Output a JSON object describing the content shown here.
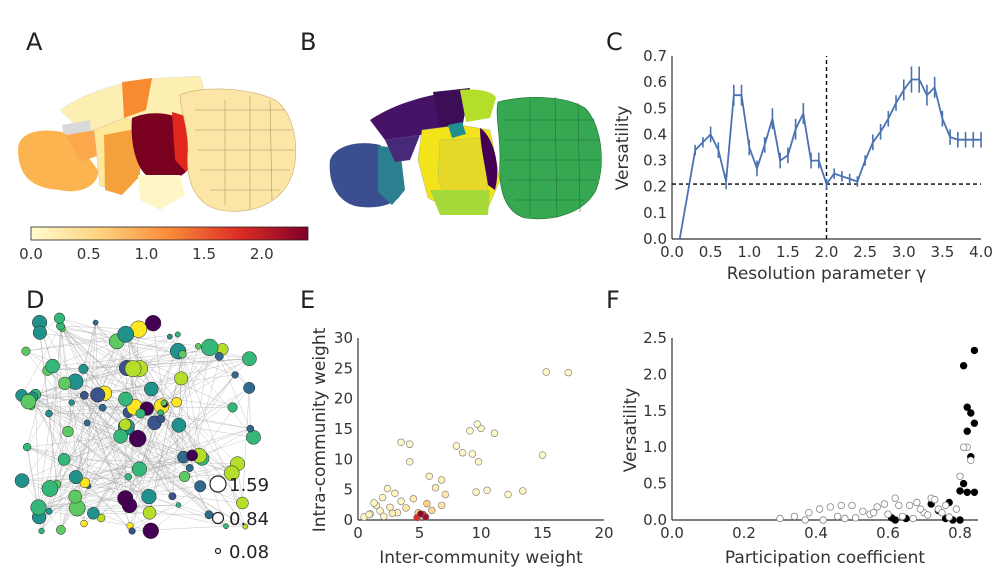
{
  "panel_labels": [
    "A",
    "B",
    "C",
    "D",
    "E",
    "F"
  ],
  "colors": {
    "line": "#4a72b0",
    "axis": "#333333",
    "dash": "#000000"
  },
  "colorbar": {
    "ticks": [
      "0.0",
      "0.5",
      "1.0",
      "1.5",
      "2.0"
    ],
    "min": 0,
    "max": 2.4
  },
  "size_legend": [
    "1.59",
    "0.84",
    "0.08"
  ],
  "chart_data": [
    {
      "id": "C",
      "type": "line",
      "xlabel": "Resolution parameter γ",
      "ylabel": "Versatility",
      "xlim": [
        0,
        4
      ],
      "ylim": [
        0,
        0.7
      ],
      "xticks": [
        "0.0",
        "0.5",
        "1.0",
        "1.5",
        "2.0",
        "2.5",
        "3.0",
        "3.5",
        "4.0"
      ],
      "yticks": [
        "0.0",
        "0.1",
        "0.2",
        "0.3",
        "0.4",
        "0.5",
        "0.6",
        "0.7"
      ],
      "hline": 0.21,
      "vline": 2.0,
      "x": [
        0.1,
        0.2,
        0.3,
        0.4,
        0.5,
        0.6,
        0.7,
        0.8,
        0.9,
        1.0,
        1.1,
        1.2,
        1.3,
        1.4,
        1.5,
        1.6,
        1.7,
        1.8,
        1.9,
        2.0,
        2.1,
        2.2,
        2.3,
        2.4,
        2.5,
        2.6,
        2.7,
        2.8,
        2.9,
        3.0,
        3.1,
        3.2,
        3.3,
        3.4,
        3.5,
        3.6,
        3.7,
        3.8,
        3.9,
        4.0
      ],
      "y": [
        0.0,
        0.17,
        0.34,
        0.37,
        0.4,
        0.34,
        0.22,
        0.55,
        0.55,
        0.35,
        0.27,
        0.36,
        0.46,
        0.3,
        0.32,
        0.42,
        0.48,
        0.3,
        0.3,
        0.21,
        0.25,
        0.24,
        0.23,
        0.22,
        0.3,
        0.37,
        0.41,
        0.46,
        0.52,
        0.57,
        0.61,
        0.61,
        0.55,
        0.58,
        0.46,
        0.39,
        0.38,
        0.38,
        0.38,
        0.38
      ],
      "err": [
        0,
        0,
        0.02,
        0.02,
        0.03,
        0.03,
        0.03,
        0.04,
        0.04,
        0.03,
        0.03,
        0.03,
        0.04,
        0.03,
        0.03,
        0.04,
        0.04,
        0.03,
        0.03,
        0.02,
        0.02,
        0.02,
        0.02,
        0.02,
        0.02,
        0.03,
        0.03,
        0.03,
        0.03,
        0.04,
        0.05,
        0.05,
        0.04,
        0.04,
        0.03,
        0.03,
        0.03,
        0.03,
        0.03,
        0.03
      ]
    },
    {
      "id": "E",
      "type": "scatter",
      "xlabel": "Inter-community weight",
      "ylabel": "Intra-community weight",
      "xlim": [
        0,
        20
      ],
      "ylim": [
        0,
        30
      ],
      "xticks": [
        "0",
        "5",
        "10",
        "15",
        "20"
      ],
      "yticks": [
        "0",
        "5",
        "10",
        "15",
        "20",
        "25",
        "30"
      ],
      "x": [
        15.3,
        17.1,
        9.1,
        10.0,
        9.7,
        11.1,
        3.5,
        4.2,
        8.0,
        8.5,
        9.3,
        9.8,
        15.0,
        13.4,
        9.6,
        12.2,
        10.5,
        4.2,
        5.8,
        6.8,
        1.0,
        1.5,
        2.0,
        2.4,
        3.0,
        3.5,
        1.8,
        2.6,
        3.2,
        0.5,
        0.9,
        1.3,
        2.1,
        2.8,
        3.9,
        4.5,
        4.9,
        5.3,
        5.5,
        4.8,
        5.1,
        6.0,
        6.8,
        7.1,
        6.3,
        5.6
      ],
      "y": [
        24.4,
        24.3,
        14.7,
        15.1,
        15.8,
        14.3,
        12.8,
        12.5,
        12.2,
        11.1,
        10.9,
        9.6,
        10.7,
        4.8,
        4.6,
        4.2,
        4.9,
        9.6,
        7.2,
        6.6,
        1.0,
        2.4,
        3.7,
        5.2,
        4.4,
        3.1,
        1.5,
        2.1,
        1.2,
        0.5,
        0.9,
        2.8,
        0.6,
        1.1,
        2.0,
        3.5,
        1.2,
        0.9,
        0.5,
        0.4,
        1.0,
        1.6,
        2.4,
        4.2,
        5.3,
        2.7
      ],
      "c": [
        0.05,
        0.05,
        0.05,
        0.05,
        0.05,
        0.05,
        0.05,
        0.05,
        0.05,
        0.05,
        0.05,
        0.05,
        0.05,
        0.05,
        0.1,
        0.05,
        0.05,
        0.05,
        0.1,
        0.2,
        0.05,
        0.1,
        0.1,
        0.1,
        0.1,
        0.1,
        0.05,
        0.1,
        0.1,
        0.05,
        0.1,
        0.1,
        0.1,
        0.2,
        0.3,
        0.2,
        0.6,
        1.6,
        2.2,
        1.8,
        2.3,
        0.5,
        0.3,
        0.25,
        0.2,
        0.6
      ]
    },
    {
      "id": "F",
      "type": "scatter",
      "xlabel": "Participation coefficient",
      "ylabel": "Versatility",
      "xlim": [
        0,
        0.85
      ],
      "ylim": [
        0,
        2.5
      ],
      "xticks": [
        "0.0",
        "0.2",
        "0.4",
        "0.6",
        "0.8"
      ],
      "yticks": [
        "0.0",
        "0.5",
        "1.0",
        "1.5",
        "2.0",
        "2.5"
      ],
      "x": [
        0.84,
        0.81,
        0.82,
        0.83,
        0.84,
        0.82,
        0.83,
        0.81,
        0.8,
        0.82,
        0.84,
        0.8,
        0.72,
        0.65,
        0.62,
        0.61,
        0.78,
        0.76,
        0.77,
        0.74,
        0.82,
        0.81,
        0.83,
        0.3,
        0.34,
        0.38,
        0.41,
        0.44,
        0.47,
        0.5,
        0.53,
        0.55,
        0.57,
        0.59,
        0.62,
        0.64,
        0.66,
        0.68,
        0.7,
        0.72,
        0.74,
        0.76,
        0.79,
        0.42,
        0.46,
        0.51,
        0.56,
        0.6,
        0.63,
        0.67,
        0.69,
        0.71,
        0.73,
        0.75,
        0.77,
        0.8,
        0.37,
        0.48
      ],
      "y": [
        2.33,
        2.12,
        1.55,
        1.47,
        1.33,
        1.22,
        0.87,
        0.5,
        0.4,
        0.38,
        0.38,
        0.0,
        0.22,
        0.02,
        0.0,
        0.03,
        0.0,
        0.02,
        0.24,
        0.13,
        1.0,
        1.0,
        0.82,
        0.02,
        0.05,
        0.1,
        0.15,
        0.18,
        0.2,
        0.2,
        0.12,
        0.08,
        0.18,
        0.22,
        0.3,
        0.05,
        0.2,
        0.24,
        0.1,
        0.3,
        0.15,
        0.2,
        0.15,
        0.0,
        0.05,
        0.03,
        0.1,
        0.08,
        0.2,
        0.02,
        0.15,
        0.07,
        0.28,
        0.1,
        0.04,
        0.6,
        0.0,
        0.02
      ],
      "filled": [
        1,
        1,
        1,
        1,
        1,
        1,
        1,
        1,
        1,
        1,
        1,
        1,
        1,
        1,
        1,
        1,
        1,
        1,
        1,
        1,
        0,
        0,
        0,
        0,
        0,
        0,
        0,
        0,
        0,
        0,
        0,
        0,
        0,
        0,
        0,
        0,
        0,
        0,
        0,
        0,
        0,
        0,
        0,
        0,
        0,
        0,
        0,
        0,
        0,
        0,
        0,
        0,
        0,
        0,
        0,
        0,
        0,
        0
      ]
    }
  ]
}
